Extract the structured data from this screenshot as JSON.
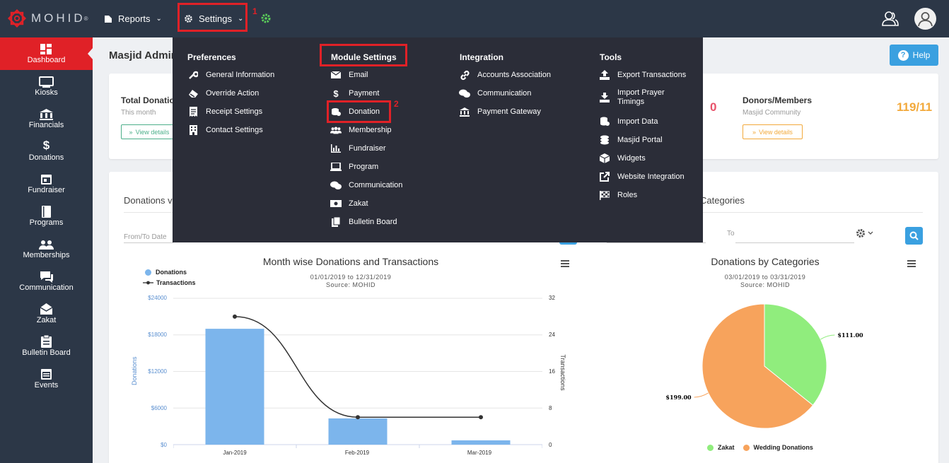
{
  "brand": {
    "name": "MOHID",
    "mark": "®"
  },
  "topnav": {
    "reports_label": "Reports",
    "settings_label": "Settings"
  },
  "annotations": {
    "one": "1",
    "two": "2"
  },
  "sidebar": {
    "items": [
      {
        "label": "Dashboard",
        "icon": "dashboard-icon"
      },
      {
        "label": "Kiosks",
        "icon": "monitor-icon"
      },
      {
        "label": "Financials",
        "icon": "bank-icon"
      },
      {
        "label": "Donations",
        "icon": "dollar-icon"
      },
      {
        "label": "Fundraiser",
        "icon": "calendar-icon"
      },
      {
        "label": "Programs",
        "icon": "book-icon"
      },
      {
        "label": "Memberships",
        "icon": "users-icon"
      },
      {
        "label": "Communication",
        "icon": "chat-icon"
      },
      {
        "label": "Zakat",
        "icon": "envelope-icon"
      },
      {
        "label": "Bulletin Board",
        "icon": "clipboard-icon"
      },
      {
        "label": "Events",
        "icon": "calendar-list-icon"
      }
    ]
  },
  "main": {
    "title": "Masjid Admin",
    "help_label": "Help",
    "stats": {
      "left": {
        "title": "Total Donatio",
        "sub": "This month",
        "view": "View details"
      },
      "middle_value": "0",
      "right": {
        "title": "Donors/Members",
        "sub": "Masjid Community",
        "view": "View details",
        "value": "119/11"
      }
    },
    "left_panel": {
      "title": "Donations v",
      "from_to": "From/To Date"
    },
    "right_panel": {
      "title": "Categories",
      "to_label": "To"
    }
  },
  "dropdown": {
    "preferences": {
      "title": "Preferences",
      "items": [
        "General Information",
        "Override Action",
        "Receipt Settings",
        "Contact Settings"
      ]
    },
    "module_settings": {
      "title": "Module Settings",
      "items": [
        "Email",
        "Payment",
        "Donation",
        "Membership",
        "Fundraiser",
        "Program",
        "Communication",
        "Zakat",
        "Bulletin Board"
      ]
    },
    "integration": {
      "title": "Integration",
      "items": [
        "Accounts Association",
        "Communication",
        "Payment Gateway"
      ]
    },
    "tools": {
      "title": "Tools",
      "items": [
        "Export Transactions",
        "Import Prayer Timings",
        "Import Data",
        "Masjid Portal",
        "Widgets",
        "Website Integration",
        "Roles"
      ]
    }
  },
  "chart_data": [
    {
      "type": "bar",
      "title": "Month wise Donations and Transactions",
      "subtitle": "01/01/2019 to 12/31/2019",
      "source": "Source: MOHID",
      "categories": [
        "Jan-2019",
        "Feb-2019",
        "Mar-2019"
      ],
      "ylabel": "Donations",
      "y2label": "Transactions",
      "ylim": [
        0,
        24000
      ],
      "y2lim": [
        0,
        32
      ],
      "yticks": [
        "$0",
        "$6000",
        "$12000",
        "$18000",
        "$24000"
      ],
      "y2ticks": [
        "0",
        "8",
        "16",
        "24",
        "32"
      ],
      "series": [
        {
          "name": "Donations",
          "type": "bar",
          "values": [
            19000,
            4300,
            700
          ],
          "color": "#7cb5ec"
        },
        {
          "name": "Transactions",
          "type": "line",
          "values": [
            28,
            6,
            6
          ],
          "color": "#333333"
        }
      ],
      "legend": "top-left"
    },
    {
      "type": "pie",
      "title": "Donations by Categories",
      "subtitle": "03/01/2019 to 03/31/2019",
      "source": "Source: MOHID",
      "slices": [
        {
          "name": "Zakat",
          "value": 111,
          "label": "$111.00",
          "color": "#90ed7d"
        },
        {
          "name": "Wedding Donations",
          "value": 199,
          "label": "$199.00",
          "color": "#f7a35c"
        }
      ],
      "legend": "bottom"
    }
  ]
}
